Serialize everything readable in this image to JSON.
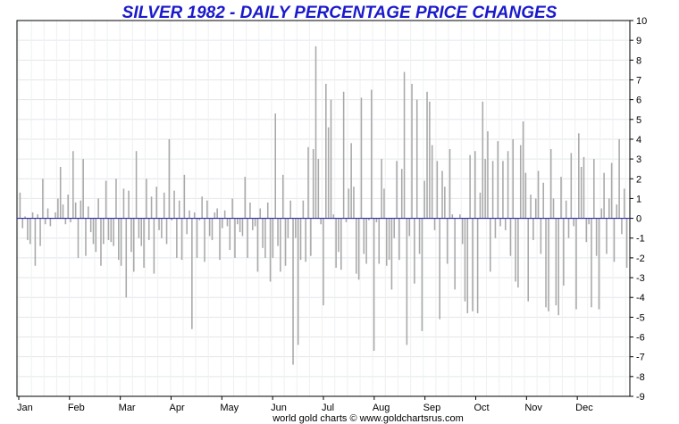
{
  "chart_data": {
    "type": "bar",
    "title": "SILVER 1982 - DAILY PERCENTAGE PRICE CHANGES",
    "footer": "world gold charts © www.goldchartsrus.com",
    "ylim": [
      -9,
      10
    ],
    "y_ticks": [
      10,
      9,
      8,
      7,
      6,
      5,
      4,
      3,
      2,
      1,
      0,
      -1,
      -2,
      -3,
      -4,
      -5,
      -6,
      -7,
      -8,
      -9
    ],
    "months": [
      "Jan",
      "Feb",
      "Mar",
      "Apr",
      "May",
      "Jun",
      "Jul",
      "Aug",
      "Sep",
      "Oct",
      "Nov",
      "Dec"
    ],
    "grid": true,
    "zero_line_color": "#2a2aa8",
    "bar_color": "#a9a9a9",
    "title_color": "#1a1acc",
    "series": [
      {
        "values": [
          1.3,
          -0.5,
          0.1,
          -1.1,
          -1.3,
          0.3,
          -2.4,
          0.2,
          -1.4,
          2.0,
          -0.3,
          0.5,
          -0.4,
          0.0,
          0.3,
          1.0,
          2.6,
          0.7,
          -0.3,
          1.2,
          -0.2,
          3.4,
          0.8,
          -2.0,
          0.9,
          3.0,
          -1.9,
          0.6,
          -0.7,
          -1.3,
          -1.7,
          1.0,
          -2.4,
          -1.3,
          1.9,
          -1.1,
          -1.2,
          -1.4,
          2.0,
          -2.1,
          -2.4,
          1.5,
          -4.0,
          1.4,
          -1.7,
          -2.7,
          3.4,
          -1.0,
          -1.4,
          -2.5,
          2.0,
          -1.1,
          1.1,
          -2.8,
          1.6,
          -0.6,
          -1.0,
          1.3,
          -1.3,
          4.0,
          -0.1,
          1.4,
          -2.0,
          0.9,
          -2.1,
          2.2,
          -0.8,
          0.4,
          -5.6,
          0.3,
          -2.0,
          -0.1,
          1.1,
          -2.2,
          0.9,
          -0.9,
          -1.1,
          0.3,
          0.5,
          -2.1,
          -0.5,
          0.4,
          -0.4,
          -1.6,
          1.0,
          -2.0,
          -0.3,
          -0.7,
          -0.9,
          2.1,
          -2.0,
          0.8,
          -0.6,
          -0.4,
          -2.7,
          0.5,
          -1.5,
          -2.0,
          0.8,
          -3.2,
          -2.0,
          5.3,
          -1.4,
          -2.7,
          2.2,
          -2.4,
          -1.0,
          0.9,
          -7.4,
          -1.0,
          -6.4,
          -2.1,
          0.9,
          -2.2,
          3.6,
          -1.9,
          3.5,
          8.7,
          3.0,
          -0.3,
          -4.4,
          6.8,
          4.6,
          6.0,
          0.2,
          -2.5,
          -1.7,
          -2.6,
          6.4,
          -0.2,
          1.5,
          3.8,
          1.6,
          -2.8,
          -3.1,
          6.1,
          -1.8,
          -2.3,
          -0.1,
          6.5,
          -6.7,
          -0.2,
          -2.3,
          3.0,
          1.5,
          -2.4,
          -2.1,
          -3.6,
          -1.0,
          2.9,
          -2.1,
          2.5,
          7.4,
          -6.4,
          -0.9,
          6.8,
          -3.3,
          6.0,
          -1.8,
          -5.7,
          1.9,
          6.4,
          5.9,
          3.7,
          -0.6,
          2.9,
          -5.1,
          2.4,
          1.6,
          -2.3,
          3.5,
          0.2,
          -3.6,
          0.0,
          0.2,
          -1.3,
          -4.2,
          -4.8,
          3.2,
          -4.7,
          3.4,
          -4.8,
          1.3,
          5.9,
          3.0,
          4.4,
          -2.7,
          2.9,
          -1.0,
          3.9,
          -0.4,
          2.9,
          -0.6,
          3.4,
          -1.9,
          4.0,
          -3.2,
          -3.5,
          3.7,
          4.9,
          2.3,
          -4.2,
          1.2,
          -1.1,
          1.0,
          2.4,
          -1.8,
          1.8,
          -4.5,
          -4.7,
          3.5,
          1.0,
          -4.4,
          -4.9,
          2.1,
          -3.4,
          0.9,
          -1.0,
          3.3,
          -0.4,
          -4.6,
          4.3,
          2.6,
          3.1,
          -1.2,
          -0.3,
          -4.5,
          3.0,
          -1.9,
          -4.6,
          0.5,
          2.3,
          -1.8,
          1.0,
          2.8,
          -2.2,
          0.7,
          4.0,
          -0.8,
          1.5,
          -2.5
        ]
      }
    ]
  }
}
